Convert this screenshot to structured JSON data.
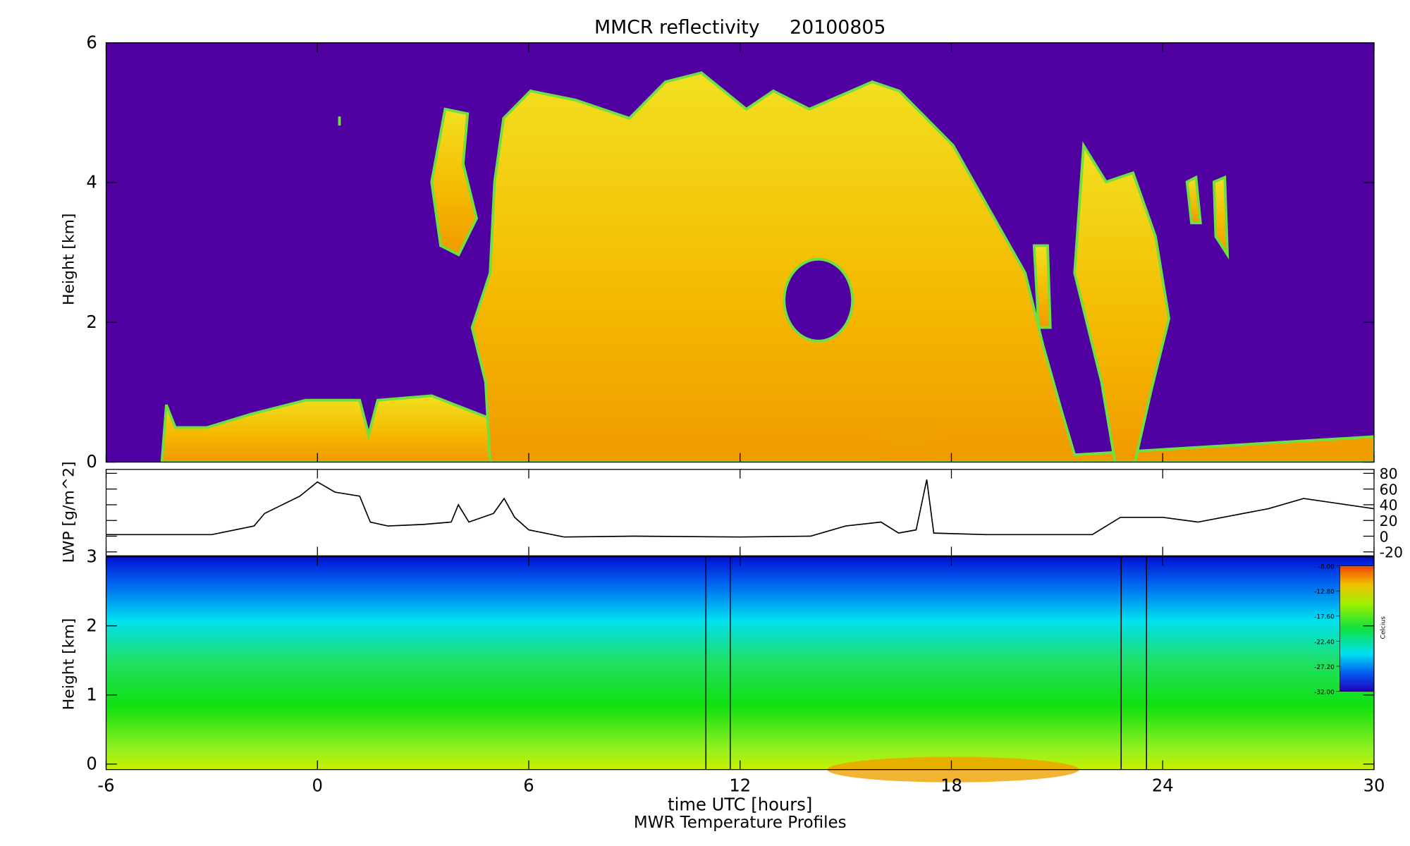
{
  "chart_data": [
    {
      "type": "heatmap",
      "title": "MMCR reflectivity     20100805",
      "ylabel": "Height [km]",
      "xlim": [
        -6,
        30
      ],
      "ylim": [
        0,
        6
      ],
      "yticks": [
        0,
        2,
        4,
        6
      ]
    },
    {
      "type": "line",
      "ylabel": "LWP [g/m^2]",
      "xlim": [
        -6,
        30
      ],
      "ylim": [
        -25,
        85
      ],
      "yticks": [
        -20,
        0,
        20,
        40,
        60,
        80
      ],
      "y_axis_position": "right",
      "series": [
        {
          "color": "#000000",
          "x": [
            -6,
            -3,
            -1.8,
            -1.5,
            -0.5,
            0,
            0.5,
            1.2,
            1.5,
            2,
            3,
            3.8,
            4,
            4.3,
            5,
            5.3,
            5.6,
            6,
            7,
            9,
            12,
            14,
            15,
            16,
            16.5,
            17,
            17.3,
            17.5,
            19,
            22,
            22.8,
            24,
            25,
            27,
            28,
            30
          ],
          "values": [
            2,
            2,
            13,
            29,
            51,
            69,
            56,
            51,
            18,
            13,
            15,
            18,
            40,
            18,
            29,
            48,
            24,
            8,
            -1,
            0,
            -1,
            0,
            13,
            18,
            4,
            8,
            72,
            4,
            2,
            2,
            24,
            24,
            18,
            35,
            48,
            35
          ]
        }
      ]
    },
    {
      "type": "heatmap",
      "ylabel": "Height [km]",
      "xlabel": "time UTC [hours]",
      "title": "MWR Temperature Profiles",
      "xlim": [
        -6,
        30
      ],
      "xticks": [
        -6,
        0,
        6,
        12,
        18,
        24,
        30
      ],
      "ylim": [
        -0.08,
        3
      ],
      "yticks": [
        0,
        1,
        2,
        3
      ],
      "vertical_lines": [
        11.03,
        11.72,
        22.82,
        23.54
      ],
      "colorbar": {
        "label": "Celcius",
        "lim": [
          -32,
          -8
        ],
        "ticks": [
          {
            "value": -8,
            "label": "-8.00"
          },
          {
            "value": -12.8,
            "label": "-12.80"
          },
          {
            "value": -17.6,
            "label": "-17.60"
          },
          {
            "value": -22.4,
            "label": "-22.40"
          },
          {
            "value": -27.2,
            "label": "-27.20"
          },
          {
            "value": -32,
            "label": "-32.00"
          }
        ]
      }
    }
  ]
}
